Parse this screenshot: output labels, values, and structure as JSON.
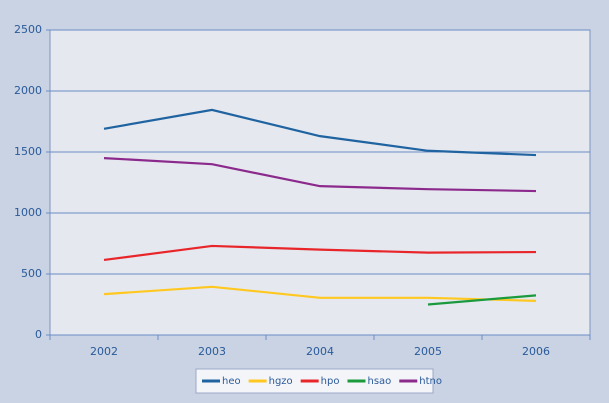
{
  "chart_data": {
    "type": "line",
    "categories": [
      "2002",
      "2003",
      "2004",
      "2005",
      "2006"
    ],
    "series": [
      {
        "name": "heo",
        "color": "#1f64a0",
        "values": [
          1690,
          1845,
          1630,
          1510,
          1475
        ]
      },
      {
        "name": "hgzo",
        "color": "#ffc820",
        "values": [
          335,
          395,
          305,
          305,
          280
        ]
      },
      {
        "name": "hpo",
        "color": "#e8262a",
        "values": [
          615,
          730,
          700,
          675,
          680
        ]
      },
      {
        "name": "hsao",
        "color": "#1a9a3c",
        "values": [
          null,
          null,
          null,
          250,
          325
        ]
      },
      {
        "name": "htno",
        "color": "#8b2a8c",
        "values": [
          1450,
          1400,
          1220,
          1195,
          1180
        ]
      }
    ],
    "ylim": [
      0,
      2500
    ],
    "yticks": [
      0,
      500,
      1000,
      1500,
      2000,
      2500
    ],
    "grid": true,
    "legend": "bottom"
  }
}
